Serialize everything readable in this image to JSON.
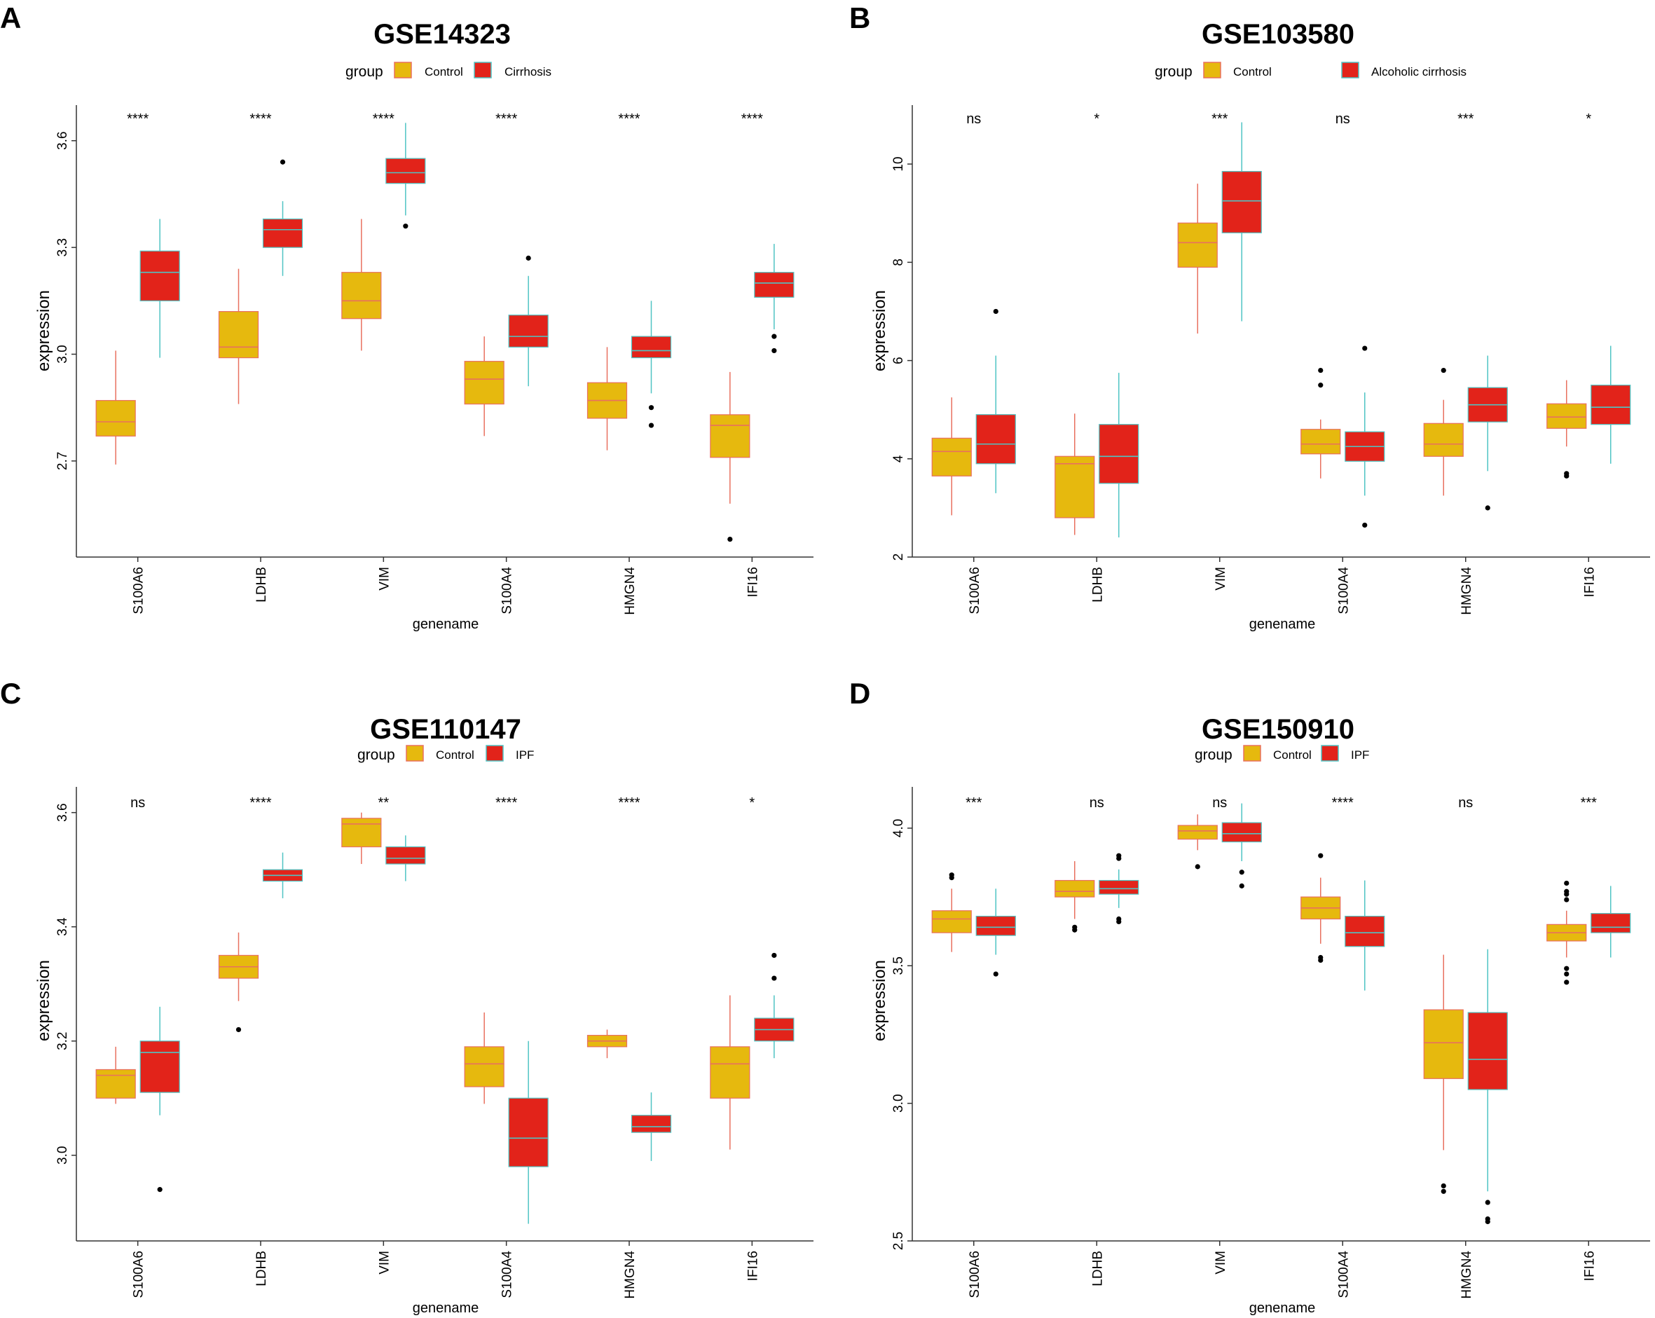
{
  "figure": {
    "legend_title": "group",
    "xlabel": "genename",
    "ylabel": "expression",
    "colors": {
      "control_fill": "#E6B90E",
      "control_line": "#E8705F",
      "case_fill": "#E2231A",
      "case_line": "#4FC4C4",
      "axis": "#333333",
      "text": "#000000"
    }
  },
  "chart_data": [
    {
      "panel": "A",
      "type": "boxplot",
      "title": "GSE14323",
      "legend": [
        "Control",
        "Cirrhosis"
      ],
      "xlabel": "genename",
      "ylabel": "expression",
      "ylim": [
        2.43,
        3.7
      ],
      "yticks": [
        2.7,
        3.0,
        3.3,
        3.6
      ],
      "ytick_labels": [
        "2.7",
        "3.0",
        "3.3",
        "3.6"
      ],
      "categories": [
        "S100A6",
        "LDHB",
        "VIM",
        "S100A4",
        "HMGN4",
        "IFI16"
      ],
      "significance": [
        "****",
        "****",
        "****",
        "****",
        "****",
        "****"
      ],
      "series": [
        {
          "name": "Control",
          "boxes": [
            {
              "min": 2.69,
              "q1": 2.77,
              "median": 2.81,
              "q3": 2.87,
              "max": 3.01,
              "outliers": []
            },
            {
              "min": 2.86,
              "q1": 2.99,
              "median": 3.02,
              "q3": 3.12,
              "max": 3.24,
              "outliers": []
            },
            {
              "min": 3.01,
              "q1": 3.1,
              "median": 3.15,
              "q3": 3.23,
              "max": 3.38,
              "outliers": []
            },
            {
              "min": 2.77,
              "q1": 2.86,
              "median": 2.93,
              "q3": 2.98,
              "max": 3.05,
              "outliers": []
            },
            {
              "min": 2.73,
              "q1": 2.82,
              "median": 2.87,
              "q3": 2.92,
              "max": 3.02,
              "outliers": []
            },
            {
              "min": 2.58,
              "q1": 2.71,
              "median": 2.8,
              "q3": 2.83,
              "max": 2.95,
              "outliers": [
                2.48
              ]
            }
          ]
        },
        {
          "name": "Cirrhosis",
          "boxes": [
            {
              "min": 2.99,
              "q1": 3.15,
              "median": 3.23,
              "q3": 3.29,
              "max": 3.38,
              "outliers": []
            },
            {
              "min": 3.22,
              "q1": 3.3,
              "median": 3.35,
              "q3": 3.38,
              "max": 3.43,
              "outliers": [
                3.54
              ]
            },
            {
              "min": 3.39,
              "q1": 3.48,
              "median": 3.51,
              "q3": 3.55,
              "max": 3.65,
              "outliers": [
                3.36
              ]
            },
            {
              "min": 2.91,
              "q1": 3.02,
              "median": 3.05,
              "q3": 3.11,
              "max": 3.22,
              "outliers": [
                3.27
              ]
            },
            {
              "min": 2.89,
              "q1": 2.99,
              "median": 3.01,
              "q3": 3.05,
              "max": 3.15,
              "outliers": [
                2.85,
                2.8
              ]
            },
            {
              "min": 3.07,
              "q1": 3.16,
              "median": 3.2,
              "q3": 3.23,
              "max": 3.31,
              "outliers": [
                3.05,
                3.01
              ]
            }
          ]
        }
      ]
    },
    {
      "panel": "B",
      "type": "boxplot",
      "title": "GSE103580",
      "legend": [
        "Control",
        "Alcoholic cirrhosis"
      ],
      "xlabel": "genename",
      "ylabel": "expression",
      "ylim": [
        2.0,
        11.2
      ],
      "yticks": [
        2,
        4,
        6,
        8,
        10
      ],
      "ytick_labels": [
        "2",
        "4",
        "6",
        "8",
        "10"
      ],
      "categories": [
        "S100A6",
        "LDHB",
        "VIM",
        "S100A4",
        "HMGN4",
        "IFI16"
      ],
      "significance": [
        "ns",
        "*",
        "***",
        "ns",
        "***",
        "*"
      ],
      "series": [
        {
          "name": "Control",
          "boxes": [
            {
              "min": 2.85,
              "q1": 3.65,
              "median": 4.15,
              "q3": 4.42,
              "max": 5.25,
              "outliers": []
            },
            {
              "min": 2.45,
              "q1": 2.8,
              "median": 3.9,
              "q3": 4.05,
              "max": 4.92,
              "outliers": []
            },
            {
              "min": 6.55,
              "q1": 7.9,
              "median": 8.4,
              "q3": 8.8,
              "max": 9.6,
              "outliers": []
            },
            {
              "min": 3.6,
              "q1": 4.1,
              "median": 4.3,
              "q3": 4.6,
              "max": 4.8,
              "outliers": [
                5.8,
                5.5
              ]
            },
            {
              "min": 3.25,
              "q1": 4.05,
              "median": 4.3,
              "q3": 4.72,
              "max": 5.2,
              "outliers": [
                5.8
              ]
            },
            {
              "min": 4.25,
              "q1": 4.62,
              "median": 4.85,
              "q3": 5.12,
              "max": 5.6,
              "outliers": [
                3.7,
                3.65
              ]
            }
          ]
        },
        {
          "name": "Alcoholic cirrhosis",
          "boxes": [
            {
              "min": 3.3,
              "q1": 3.9,
              "median": 4.3,
              "q3": 4.9,
              "max": 6.1,
              "outliers": [
                7.0
              ]
            },
            {
              "min": 2.4,
              "q1": 3.5,
              "median": 4.05,
              "q3": 4.7,
              "max": 5.75,
              "outliers": []
            },
            {
              "min": 6.8,
              "q1": 8.6,
              "median": 9.25,
              "q3": 9.85,
              "max": 10.85,
              "outliers": []
            },
            {
              "min": 3.25,
              "q1": 3.95,
              "median": 4.25,
              "q3": 4.55,
              "max": 5.35,
              "outliers": [
                6.25,
                2.65
              ]
            },
            {
              "min": 3.75,
              "q1": 4.75,
              "median": 5.1,
              "q3": 5.45,
              "max": 6.1,
              "outliers": [
                3.0
              ]
            },
            {
              "min": 3.9,
              "q1": 4.7,
              "median": 5.05,
              "q3": 5.5,
              "max": 6.3,
              "outliers": []
            }
          ]
        }
      ]
    },
    {
      "panel": "C",
      "type": "boxplot",
      "title": "GSE110147",
      "legend": [
        "Control",
        "IPF"
      ],
      "xlabel": "genename",
      "ylabel": "expression",
      "ylim": [
        2.85,
        3.645
      ],
      "yticks": [
        3.0,
        3.2,
        3.4,
        3.6
      ],
      "ytick_labels": [
        "3.0",
        "3.2",
        "3.4",
        "3.6"
      ],
      "categories": [
        "S100A6",
        "LDHB",
        "VIM",
        "S100A4",
        "HMGN4",
        "IFI16"
      ],
      "significance": [
        "ns",
        "****",
        "**",
        "****",
        "****",
        "*"
      ],
      "series": [
        {
          "name": "Control",
          "boxes": [
            {
              "min": 3.09,
              "q1": 3.1,
              "median": 3.14,
              "q3": 3.15,
              "max": 3.19,
              "outliers": []
            },
            {
              "min": 3.27,
              "q1": 3.31,
              "median": 3.33,
              "q3": 3.35,
              "max": 3.39,
              "outliers": [
                3.22
              ]
            },
            {
              "min": 3.51,
              "q1": 3.54,
              "median": 3.58,
              "q3": 3.59,
              "max": 3.6,
              "outliers": []
            },
            {
              "min": 3.09,
              "q1": 3.12,
              "median": 3.16,
              "q3": 3.19,
              "max": 3.25,
              "outliers": []
            },
            {
              "min": 3.17,
              "q1": 3.19,
              "median": 3.2,
              "q3": 3.21,
              "max": 3.22,
              "outliers": []
            },
            {
              "min": 3.01,
              "q1": 3.1,
              "median": 3.16,
              "q3": 3.19,
              "max": 3.28,
              "outliers": []
            }
          ]
        },
        {
          "name": "IPF",
          "boxes": [
            {
              "min": 3.07,
              "q1": 3.11,
              "median": 3.18,
              "q3": 3.2,
              "max": 3.26,
              "outliers": [
                2.94
              ]
            },
            {
              "min": 3.45,
              "q1": 3.48,
              "median": 3.49,
              "q3": 3.5,
              "max": 3.53,
              "outliers": []
            },
            {
              "min": 3.48,
              "q1": 3.51,
              "median": 3.52,
              "q3": 3.54,
              "max": 3.56,
              "outliers": []
            },
            {
              "min": 2.88,
              "q1": 2.98,
              "median": 3.03,
              "q3": 3.1,
              "max": 3.2,
              "outliers": []
            },
            {
              "min": 2.99,
              "q1": 3.04,
              "median": 3.05,
              "q3": 3.07,
              "max": 3.11,
              "outliers": []
            },
            {
              "min": 3.17,
              "q1": 3.2,
              "median": 3.22,
              "q3": 3.24,
              "max": 3.28,
              "outliers": [
                3.31,
                3.35
              ]
            }
          ]
        }
      ]
    },
    {
      "panel": "D",
      "type": "boxplot",
      "title": "GSE150910",
      "legend": [
        "Control",
        "IPF"
      ],
      "xlabel": "genename",
      "ylabel": "expression",
      "ylim": [
        2.5,
        4.15
      ],
      "yticks": [
        2.5,
        3.0,
        3.5,
        4.0
      ],
      "ytick_labels": [
        "2.5",
        "3.0",
        "3.5",
        "4.0"
      ],
      "categories": [
        "S100A6",
        "LDHB",
        "VIM",
        "S100A4",
        "HMGN4",
        "IFI16"
      ],
      "significance": [
        "***",
        "ns",
        "ns",
        "****",
        "ns",
        "***"
      ],
      "series": [
        {
          "name": "Control",
          "boxes": [
            {
              "min": 3.55,
              "q1": 3.62,
              "median": 3.67,
              "q3": 3.7,
              "max": 3.78,
              "outliers": [
                3.83,
                3.82
              ]
            },
            {
              "min": 3.67,
              "q1": 3.75,
              "median": 3.77,
              "q3": 3.81,
              "max": 3.88,
              "outliers": [
                3.64,
                3.63
              ]
            },
            {
              "min": 3.92,
              "q1": 3.96,
              "median": 3.99,
              "q3": 4.01,
              "max": 4.05,
              "outliers": [
                3.86
              ]
            },
            {
              "min": 3.58,
              "q1": 3.67,
              "median": 3.71,
              "q3": 3.75,
              "max": 3.82,
              "outliers": [
                3.9,
                3.53,
                3.52
              ]
            },
            {
              "min": 2.83,
              "q1": 3.09,
              "median": 3.22,
              "q3": 3.34,
              "max": 3.54,
              "outliers": [
                2.7,
                2.68
              ]
            },
            {
              "min": 3.53,
              "q1": 3.59,
              "median": 3.62,
              "q3": 3.65,
              "max": 3.7,
              "outliers": [
                3.8,
                3.77,
                3.76,
                3.74,
                3.49,
                3.47,
                3.44
              ]
            }
          ]
        },
        {
          "name": "IPF",
          "boxes": [
            {
              "min": 3.54,
              "q1": 3.61,
              "median": 3.64,
              "q3": 3.68,
              "max": 3.78,
              "outliers": [
                3.47
              ]
            },
            {
              "min": 3.71,
              "q1": 3.76,
              "median": 3.78,
              "q3": 3.81,
              "max": 3.85,
              "outliers": [
                3.9,
                3.89,
                3.67,
                3.66
              ]
            },
            {
              "min": 3.88,
              "q1": 3.95,
              "median": 3.98,
              "q3": 4.02,
              "max": 4.09,
              "outliers": [
                3.84,
                3.79
              ]
            },
            {
              "min": 3.41,
              "q1": 3.57,
              "median": 3.62,
              "q3": 3.68,
              "max": 3.81,
              "outliers": []
            },
            {
              "min": 2.68,
              "q1": 3.05,
              "median": 3.16,
              "q3": 3.33,
              "max": 3.56,
              "outliers": [
                2.64,
                2.58,
                2.57
              ]
            },
            {
              "min": 3.53,
              "q1": 3.62,
              "median": 3.64,
              "q3": 3.69,
              "max": 3.79,
              "outliers": []
            }
          ]
        }
      ]
    }
  ]
}
